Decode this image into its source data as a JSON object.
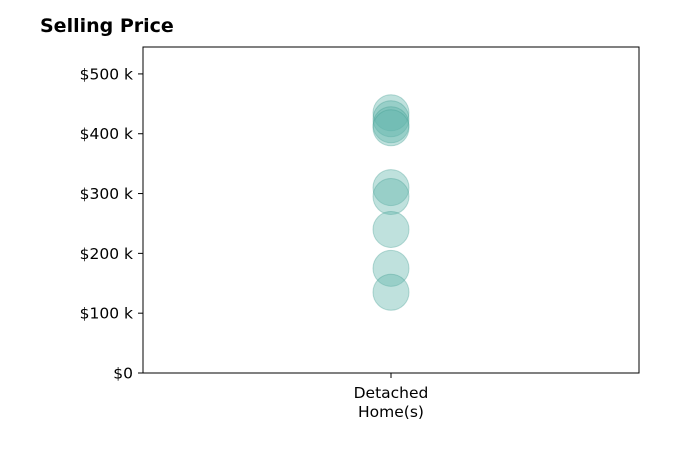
{
  "chart_data": {
    "type": "scatter",
    "title": "Selling Price",
    "xlabel": "",
    "ylabel": "",
    "categories": [
      "Detached\nHome(s)"
    ],
    "series": [
      {
        "category": "Detached\nHome(s)",
        "values": [
          435000,
          425000,
          415000,
          410000,
          310000,
          295000,
          240000,
          175000,
          135000
        ]
      }
    ],
    "ylim": [
      0,
      545000
    ],
    "yticks": [
      0,
      100000,
      200000,
      300000,
      400000,
      500000
    ],
    "ytick_labels": [
      "$0",
      "$100 k",
      "$200 k",
      "$300 k",
      "$400 k",
      "$500 k"
    ],
    "grid": false,
    "legend": "none",
    "marker_color": "#5fb3a9",
    "marker_edge_color": "#3f9a8f"
  }
}
